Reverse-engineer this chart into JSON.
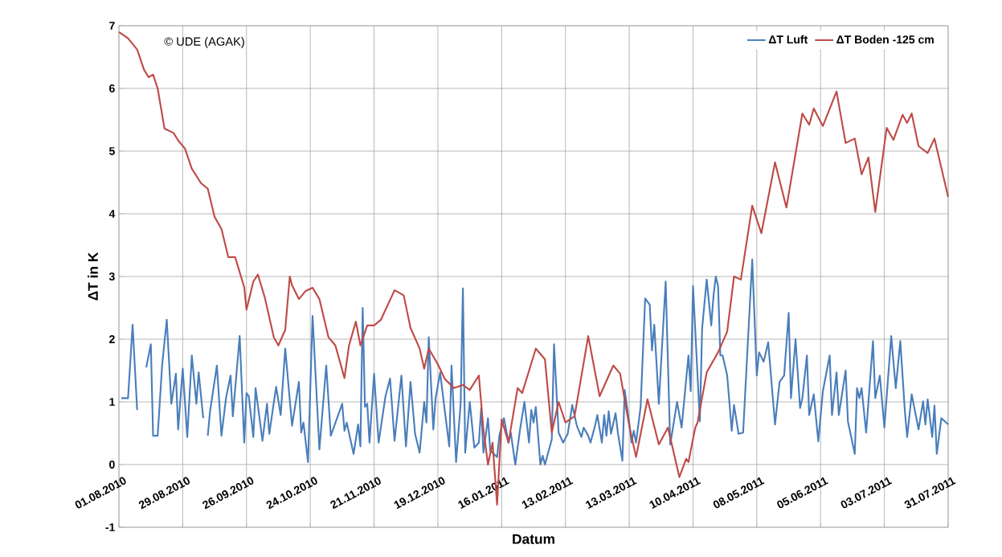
{
  "chart_data": {
    "type": "line",
    "xlabel": "Datum",
    "ylabel": "ΔT in K",
    "annotations": [
      "© UDE (AGAK)"
    ],
    "xlim": [
      "2010-08-01",
      "2011-07-31"
    ],
    "xticks": [
      {
        "value": "2010-08-01",
        "label": "01.08.2010"
      },
      {
        "value": "2010-08-29",
        "label": "29.08.2010"
      },
      {
        "value": "2010-09-26",
        "label": "26.09.2010"
      },
      {
        "value": "2010-10-24",
        "label": "24.10.2010"
      },
      {
        "value": "2010-11-21",
        "label": "21.11.2010"
      },
      {
        "value": "2010-12-19",
        "label": "19.12.2010"
      },
      {
        "value": "2011-01-16",
        "label": "16.01.2011"
      },
      {
        "value": "2011-02-13",
        "label": "13.02.2011"
      },
      {
        "value": "2011-03-13",
        "label": "13.03.2011"
      },
      {
        "value": "2011-04-10",
        "label": "10.04.2011"
      },
      {
        "value": "2011-05-08",
        "label": "08.05.2011"
      },
      {
        "value": "2011-06-05",
        "label": "05.06.2011"
      },
      {
        "value": "2011-07-03",
        "label": "03.07.2011"
      },
      {
        "value": "2011-07-31",
        "label": "31.07.2011"
      }
    ],
    "ylim": [
      -1,
      7
    ],
    "yticks": [
      -1,
      0,
      1,
      2,
      3,
      4,
      5,
      6,
      7
    ],
    "grid": true,
    "legend": "top right",
    "series": [
      {
        "name": "ΔT Luft",
        "color": "#4a7ebb",
        "x": [
          "2010-08-02",
          "2010-08-05",
          "2010-08-07",
          "2010-08-09",
          "2010-08-10",
          "2010-08-13",
          "2010-08-15",
          "2010-08-16",
          "2010-08-18",
          "2010-08-20",
          "2010-08-22",
          "2010-08-24",
          "2010-08-26",
          "2010-08-27",
          "2010-08-29",
          "2010-08-31",
          "2010-09-02",
          "2010-09-04",
          "2010-09-05",
          "2010-09-07",
          "2010-09-08",
          "2010-09-09",
          "2010-09-10",
          "2010-09-13",
          "2010-09-15",
          "2010-09-17",
          "2010-09-19",
          "2010-09-20",
          "2010-09-23",
          "2010-09-25",
          "2010-09-26",
          "2010-09-27",
          "2010-09-29",
          "2010-09-30",
          "2010-10-03",
          "2010-10-05",
          "2010-10-06",
          "2010-10-09",
          "2010-10-11",
          "2010-10-13",
          "2010-10-16",
          "2010-10-19",
          "2010-10-20",
          "2010-10-21",
          "2010-10-23",
          "2010-10-25",
          "2010-10-28",
          "2010-10-31",
          "2010-11-02",
          "2010-11-07",
          "2010-11-08",
          "2010-11-09",
          "2010-11-12",
          "2010-11-14",
          "2010-11-15",
          "2010-11-16",
          "2010-11-17",
          "2010-11-18",
          "2010-11-19",
          "2010-11-21",
          "2010-11-23",
          "2010-11-26",
          "2010-11-28",
          "2010-11-30",
          "2010-12-03",
          "2010-12-05",
          "2010-12-07",
          "2010-12-09",
          "2010-12-11",
          "2010-12-13",
          "2010-12-14",
          "2010-12-15",
          "2010-12-17",
          "2010-12-18",
          "2010-12-20",
          "2010-12-22",
          "2010-12-24",
          "2010-12-25",
          "2010-12-27",
          "2010-12-29",
          "2010-12-30",
          "2010-12-31",
          "2011-01-02",
          "2011-01-04",
          "2011-01-06",
          "2011-01-07",
          "2011-01-08",
          "2011-01-10",
          "2011-01-11",
          "2011-01-14",
          "2011-01-15",
          "2011-01-17",
          "2011-01-19",
          "2011-01-20",
          "2011-01-22",
          "2011-01-24",
          "2011-01-26",
          "2011-01-28",
          "2011-01-29",
          "2011-01-30",
          "2011-01-31",
          "2011-02-02",
          "2011-02-03",
          "2011-02-04",
          "2011-02-07",
          "2011-02-08",
          "2011-02-10",
          "2011-02-12",
          "2011-02-14",
          "2011-02-16",
          "2011-02-18",
          "2011-02-20",
          "2011-02-21",
          "2011-02-23",
          "2011-02-24",
          "2011-02-26",
          "2011-02-27",
          "2011-03-01",
          "2011-03-02",
          "2011-03-03",
          "2011-03-04",
          "2011-03-05",
          "2011-03-07",
          "2011-03-08",
          "2011-03-10",
          "2011-03-11",
          "2011-03-13",
          "2011-03-14",
          "2011-03-15",
          "2011-03-16",
          "2011-03-18",
          "2011-03-20",
          "2011-03-22",
          "2011-03-23",
          "2011-03-24",
          "2011-03-26",
          "2011-03-29",
          "2011-03-31",
          "2011-04-03",
          "2011-04-05",
          "2011-04-08",
          "2011-04-09",
          "2011-04-10",
          "2011-04-13",
          "2011-04-14",
          "2011-04-16",
          "2011-04-17",
          "2011-04-18",
          "2011-04-19",
          "2011-04-20",
          "2011-04-21",
          "2011-04-22",
          "2011-04-23",
          "2011-04-25",
          "2011-04-27",
          "2011-04-28",
          "2011-04-30",
          "2011-05-02",
          "2011-05-04",
          "2011-05-06",
          "2011-05-08",
          "2011-05-09",
          "2011-05-11",
          "2011-05-13",
          "2011-05-16",
          "2011-05-18",
          "2011-05-20",
          "2011-05-22",
          "2011-05-23",
          "2011-05-25",
          "2011-05-27",
          "2011-05-28",
          "2011-05-30",
          "2011-05-31",
          "2011-06-02",
          "2011-06-04",
          "2011-06-06",
          "2011-06-09",
          "2011-06-10",
          "2011-06-12",
          "2011-06-13",
          "2011-06-16",
          "2011-06-17",
          "2011-06-20",
          "2011-06-21",
          "2011-06-22",
          "2011-06-23",
          "2011-06-25",
          "2011-06-28",
          "2011-06-29",
          "2011-07-01",
          "2011-07-03",
          "2011-07-06",
          "2011-07-08",
          "2011-07-10",
          "2011-07-12",
          "2011-07-13",
          "2011-07-15",
          "2011-07-18",
          "2011-07-20",
          "2011-07-21",
          "2011-07-22",
          "2011-07-24",
          "2011-07-25",
          "2011-07-26",
          "2011-07-28",
          "2011-07-31"
        ],
        "values": [
          1.06,
          1.06,
          2.23,
          0.87,
          null,
          1.55,
          1.92,
          0.46,
          0.46,
          1.6,
          2.31,
          0.97,
          1.45,
          0.56,
          1.53,
          0.44,
          1.74,
          0.97,
          1.47,
          0.74,
          null,
          0.46,
          0.85,
          1.58,
          0.46,
          1.06,
          1.42,
          0.77,
          2.05,
          0.35,
          1.14,
          1.09,
          0.44,
          1.22,
          0.38,
          0.97,
          0.49,
          1.24,
          0.79,
          1.85,
          0.62,
          1.32,
          0.51,
          0.67,
          0.04,
          2.37,
          0.24,
          1.58,
          0.46,
          0.97,
          0.54,
          0.67,
          0.17,
          0.64,
          0.29,
          2.5,
          0.92,
          0.97,
          0.35,
          1.45,
          0.35,
          1.09,
          1.37,
          0.38,
          1.42,
          0.29,
          1.32,
          0.49,
          0.19,
          1.0,
          0.67,
          2.03,
          0.56,
          1.06,
          1.47,
          0.87,
          0.29,
          1.58,
          0.04,
          0.97,
          2.81,
          0.19,
          1.0,
          0.27,
          0.35,
          0.9,
          0.19,
          0.74,
          0.22,
          0.12,
          0.46,
          0.74,
          0.35,
          0.51,
          0,
          0.54,
          1.0,
          0.35,
          0.87,
          0.67,
          0.92,
          0,
          0.14,
          0,
          0.4,
          1.92,
          0.51,
          0.35,
          0.49,
          0.95,
          0.62,
          0.44,
          0.59,
          0.46,
          0.35,
          0.62,
          0.79,
          0.35,
          0.79,
          0.46,
          0.85,
          0.49,
          0.82,
          0.51,
          0.06,
          1.19,
          0.67,
          0.35,
          0.54,
          0.35,
          0.92,
          2.65,
          2.55,
          1.82,
          2.23,
          0.97,
          2.92,
          0.32,
          1.0,
          0.59,
          1.74,
          1.17,
          2.85,
          0.69,
          2.17,
          2.95,
          2.59,
          2.22,
          2.69,
          3.0,
          2.85,
          1.74,
          1.74,
          1.42,
          0.54,
          0.95,
          0.49,
          0.51,
          1.9,
          3.27,
          1.42,
          1.79,
          1.64,
          1.95,
          0.64,
          1.32,
          1.42,
          2.42,
          1.06,
          2.0,
          0.9,
          1.06,
          1.74,
          0.79,
          1.12,
          0.37,
          1.17,
          1.74,
          0.79,
          1.47,
          0.79,
          1.5,
          0.69,
          0.17,
          1.22,
          1.06,
          1.22,
          0.51,
          1.97,
          1.06,
          1.42,
          0.59,
          2.05,
          1.22,
          1.97,
          0.85,
          0.44,
          1.12,
          0.56,
          1.01,
          0.64,
          1.04,
          0.44,
          0.94,
          0.17,
          0.74,
          0.64
        ]
      },
      {
        "name": "ΔT Boden -125 cm",
        "color": "#be4b48",
        "x": [
          "2010-08-01",
          "2010-08-05",
          "2010-08-09",
          "2010-08-12",
          "2010-08-14",
          "2010-08-16",
          "2010-08-18",
          "2010-08-21",
          "2010-08-25",
          "2010-08-27",
          "2010-08-30",
          "2010-09-02",
          "2010-09-06",
          "2010-09-09",
          "2010-09-12",
          "2010-09-15",
          "2010-09-18",
          "2010-09-21",
          "2010-09-25",
          "2010-09-26",
          "2010-09-29",
          "2010-10-01",
          "2010-10-04",
          "2010-10-08",
          "2010-10-10",
          "2010-10-13",
          "2010-10-15",
          "2010-10-16",
          "2010-10-19",
          "2010-10-22",
          "2010-10-25",
          "2010-10-28",
          "2010-11-01",
          "2010-11-04",
          "2010-11-08",
          "2010-11-10",
          "2010-11-13",
          "2010-11-15",
          "2010-11-18",
          "2010-11-21",
          "2010-11-24",
          "2010-11-30",
          "2010-12-04",
          "2010-12-07",
          "2010-12-11",
          "2010-12-13",
          "2010-12-15",
          "2010-12-19",
          "2010-12-22",
          "2010-12-26",
          "2010-12-30",
          "2011-01-02",
          "2011-01-06",
          "2011-01-08",
          "2011-01-10",
          "2011-01-12",
          "2011-01-14",
          "2011-01-16",
          "2011-01-19",
          "2011-01-23",
          "2011-01-25",
          "2011-01-31",
          "2011-02-04",
          "2011-02-07",
          "2011-02-10",
          "2011-02-13",
          "2011-02-17",
          "2011-02-23",
          "2011-02-28",
          "2011-03-06",
          "2011-03-09",
          "2011-03-13",
          "2011-03-16",
          "2011-03-21",
          "2011-03-26",
          "2011-03-30",
          "2011-04-04",
          "2011-04-07",
          "2011-04-08",
          "2011-04-11",
          "2011-04-12",
          "2011-04-16",
          "2011-04-21",
          "2011-04-25",
          "2011-04-28",
          "2011-05-01",
          "2011-05-06",
          "2011-05-10",
          "2011-05-16",
          "2011-05-21",
          "2011-05-28",
          "2011-05-31",
          "2011-06-02",
          "2011-06-06",
          "2011-06-12",
          "2011-06-16",
          "2011-06-20",
          "2011-06-23",
          "2011-06-26",
          "2011-06-29",
          "2011-07-04",
          "2011-07-07",
          "2011-07-11",
          "2011-07-13",
          "2011-07-15",
          "2011-07-18",
          "2011-07-22",
          "2011-07-25",
          "2011-07-31"
        ],
        "values": [
          6.9,
          6.8,
          6.62,
          6.3,
          6.18,
          6.22,
          6.0,
          5.36,
          5.29,
          5.17,
          5.04,
          4.72,
          4.49,
          4.4,
          3.95,
          3.76,
          3.31,
          3.31,
          2.83,
          2.47,
          2.92,
          3.03,
          2.67,
          2.03,
          1.9,
          2.15,
          3.0,
          2.86,
          2.64,
          2.77,
          2.82,
          2.64,
          2.03,
          1.9,
          1.38,
          1.9,
          2.28,
          1.9,
          2.22,
          2.22,
          2.31,
          2.78,
          2.7,
          2.18,
          1.85,
          1.53,
          1.85,
          1.6,
          1.37,
          1.22,
          1.27,
          1.19,
          1.42,
          0.56,
          0,
          0.35,
          -0.64,
          0.72,
          0.35,
          1.22,
          1.14,
          1.85,
          1.68,
          0.51,
          1.0,
          0.67,
          0.77,
          2.05,
          1.09,
          1.58,
          1.45,
          0.62,
          0.12,
          1.04,
          0.32,
          0.59,
          -0.2,
          0.09,
          0.04,
          0.59,
          0.67,
          1.47,
          1.79,
          2.12,
          3.0,
          2.95,
          4.13,
          3.69,
          4.82,
          4.1,
          5.6,
          5.42,
          5.68,
          5.4,
          5.95,
          5.13,
          5.2,
          4.63,
          4.9,
          4.03,
          5.37,
          5.18,
          5.58,
          5.45,
          5.6,
          5.08,
          4.97,
          5.2,
          4.27
        ]
      }
    ]
  }
}
